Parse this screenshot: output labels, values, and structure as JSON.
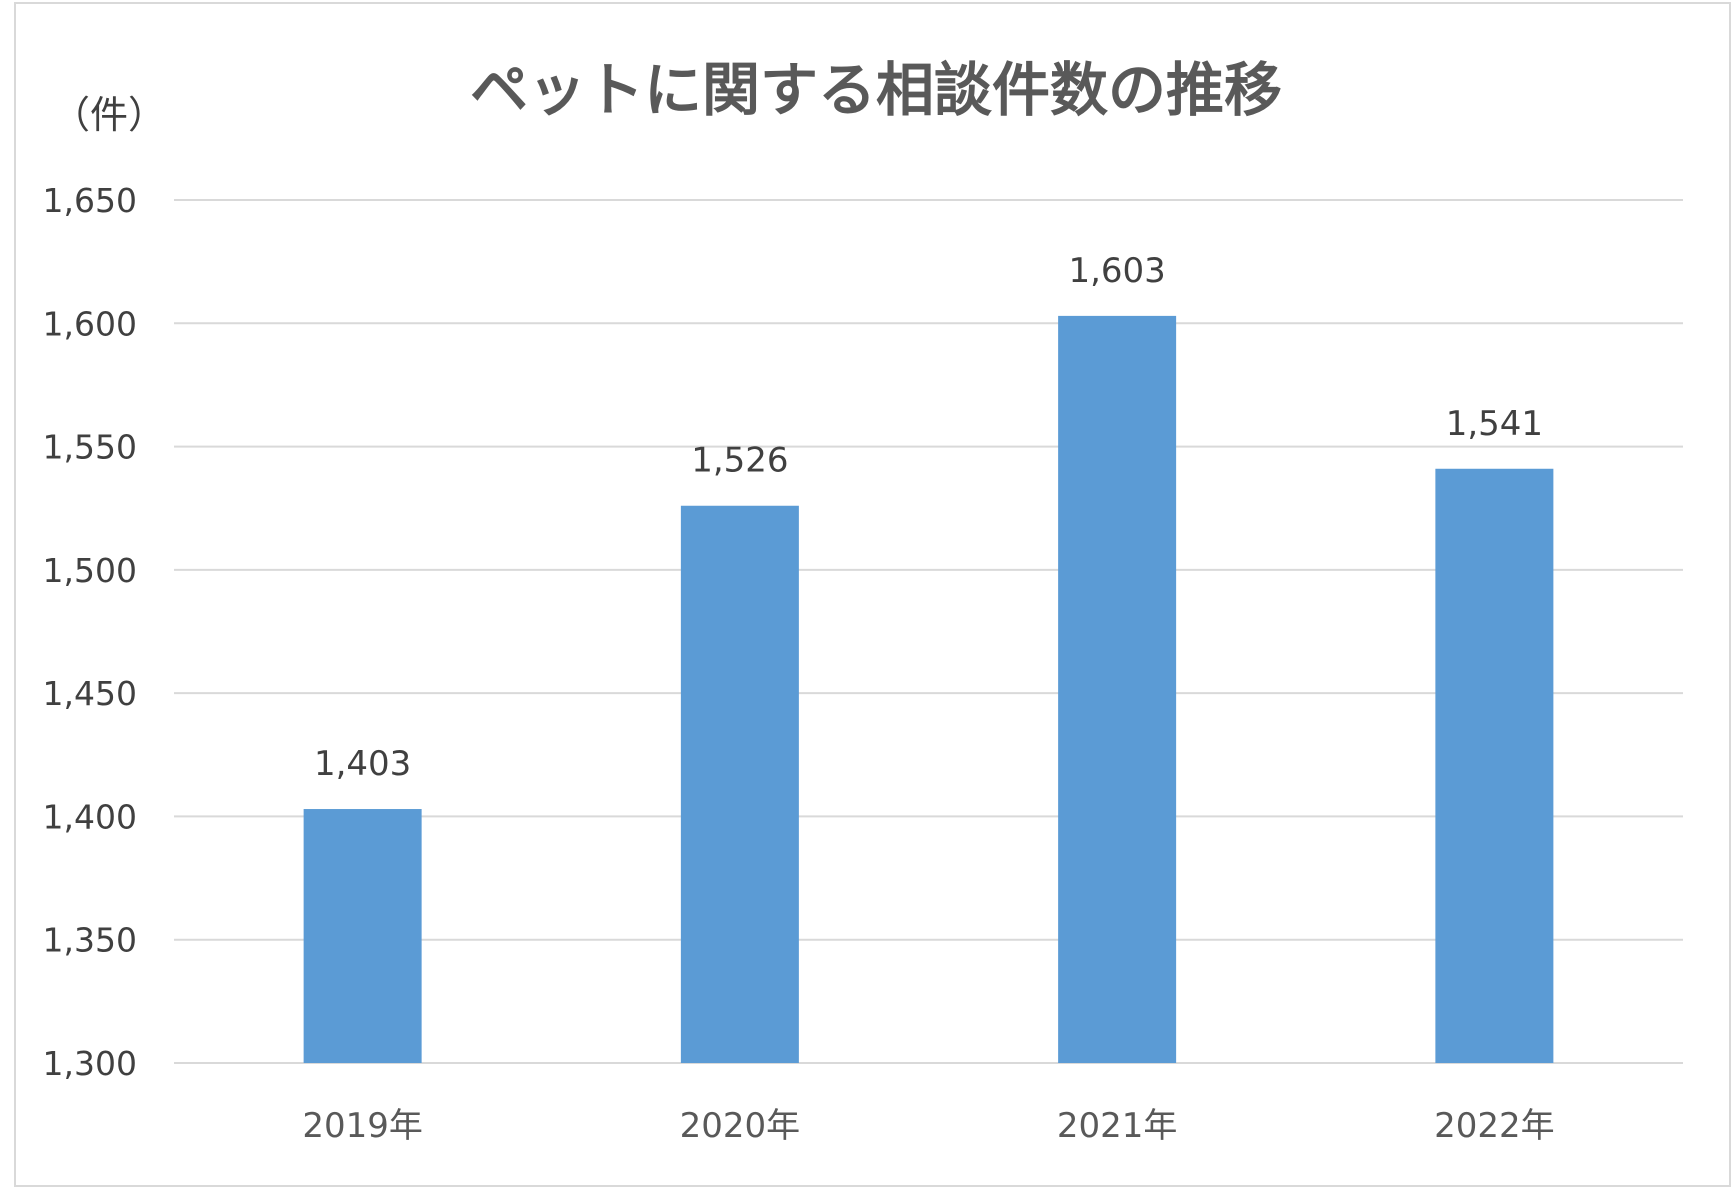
{
  "chart_data": {
    "type": "bar",
    "title": "ペットに関する相談件数の推移",
    "unit_label": "（件）",
    "categories": [
      "2019年",
      "2020年",
      "2021年",
      "2022年"
    ],
    "values": [
      1403,
      1526,
      1603,
      1541
    ],
    "data_labels": [
      "1,403",
      "1,526",
      "1,603",
      "1,541"
    ],
    "ylim": [
      1300,
      1650
    ],
    "y_ticks": [
      1300,
      1350,
      1400,
      1450,
      1500,
      1550,
      1600,
      1650
    ],
    "y_tick_labels": [
      "1,300",
      "1,350",
      "1,400",
      "1,450",
      "1,500",
      "1,550",
      "1,600",
      "1,650"
    ],
    "grid": true,
    "legend": "none",
    "colors": {
      "bar": "#5b9bd5",
      "grid": "#d9d9d9",
      "axis": "#d9d9d9",
      "text": "#404040"
    }
  }
}
